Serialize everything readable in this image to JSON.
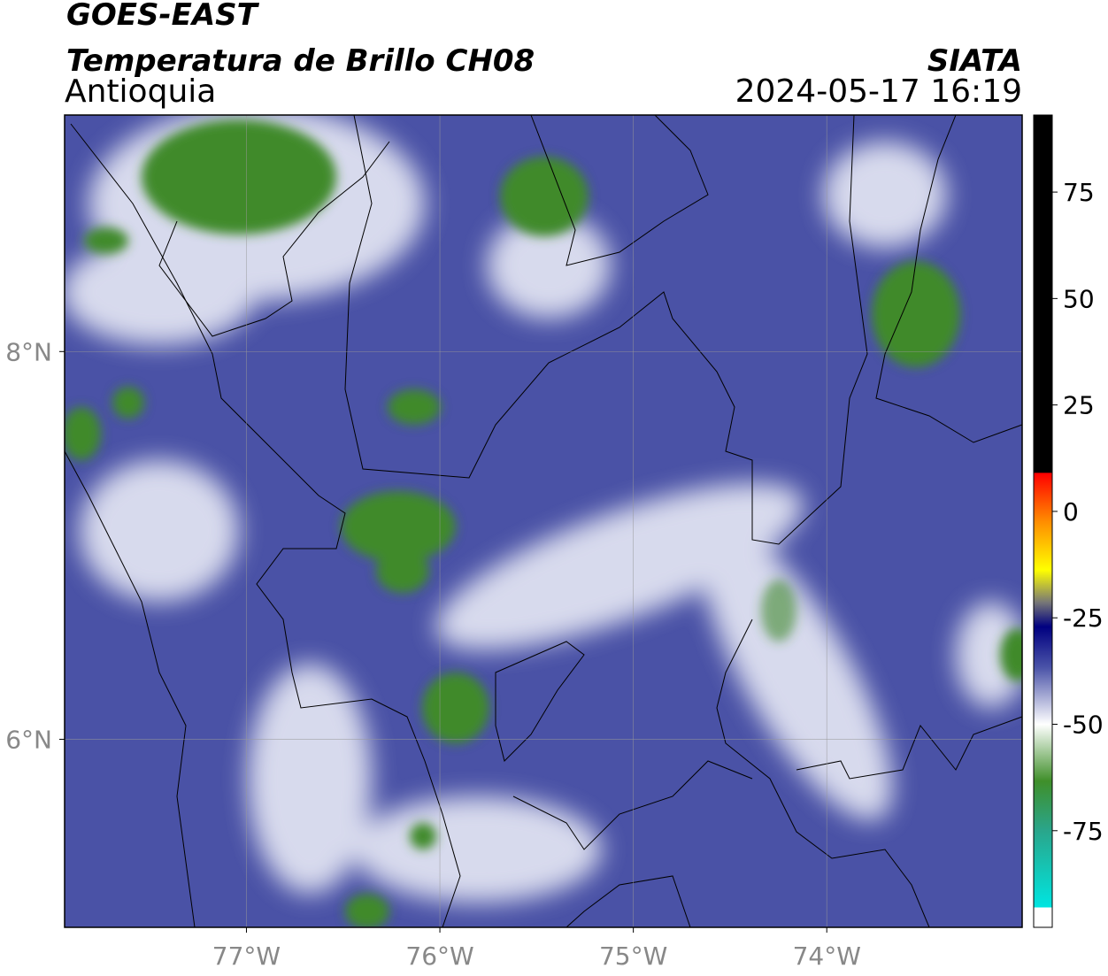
{
  "header": {
    "satellite": "GOES-EAST",
    "product": "Temperatura de Brillo CH08",
    "region": "Antioquia",
    "org": "SIATA",
    "datetime": "2024-05-17 16:19"
  },
  "map": {
    "xlim": [
      -77.94,
      -72.99
    ],
    "ylim": [
      5.03,
      9.22
    ],
    "xticks": [
      {
        "value": -77,
        "label": "77°W"
      },
      {
        "value": -76,
        "label": "76°W"
      },
      {
        "value": -75,
        "label": "75°W"
      },
      {
        "value": -74,
        "label": "74°W"
      }
    ],
    "yticks": [
      {
        "value": 8,
        "label": "8°N"
      },
      {
        "value": 6,
        "label": "6°N"
      }
    ],
    "grid": true
  },
  "colorbar": {
    "lim": [
      -97.7,
      93.1
    ],
    "ticks": [
      75,
      50,
      25,
      0,
      -25,
      -50,
      -75
    ]
  }
}
